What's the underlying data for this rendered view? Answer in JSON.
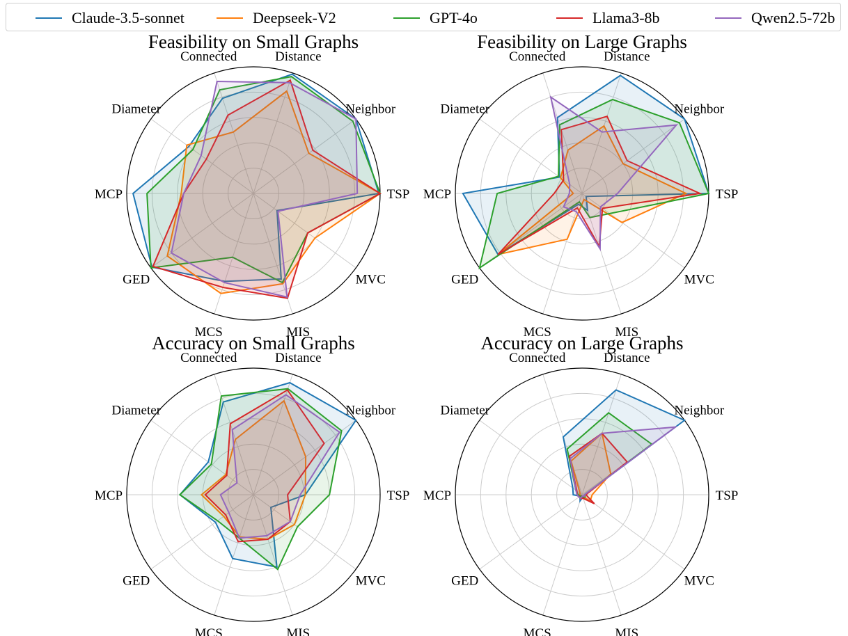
{
  "chart_data": {
    "type": "radar",
    "axes": [
      "Connected",
      "Distance",
      "Neighbor",
      "TSP",
      "MVC",
      "MIS",
      "MCS",
      "GED",
      "MCP",
      "Diameter"
    ],
    "rlim": [
      0,
      1
    ],
    "grid": true,
    "legend_position": "top",
    "legend": [
      {
        "name": "Claude-3.5-sonnet",
        "color": "#1f77b4"
      },
      {
        "name": "Deepseek-V2",
        "color": "#ff7f0e"
      },
      {
        "name": "GPT-4o",
        "color": "#2ca02c"
      },
      {
        "name": "Llama3-8b",
        "color": "#d62728"
      },
      {
        "name": "Qwen2.5-72b",
        "color": "#9467bd"
      }
    ],
    "panels": [
      {
        "title": "Feasibility on Small Graphs",
        "series": [
          {
            "name": "Claude-3.5-sonnet",
            "values": [
              0.79,
              0.99,
              1.0,
              0.99,
              0.23,
              0.71,
              0.73,
              0.99,
              0.95,
              0.63
            ]
          },
          {
            "name": "Deepseek-V2",
            "values": [
              0.51,
              0.85,
              0.54,
              1.0,
              0.6,
              0.75,
              0.83,
              0.84,
              0.57,
              0.65
            ]
          },
          {
            "name": "GPT-4o",
            "values": [
              0.86,
              0.97,
              0.97,
              1.0,
              0.53,
              0.74,
              0.53,
              1.0,
              0.84,
              0.59
            ]
          },
          {
            "name": "Llama3-8b",
            "values": [
              0.65,
              0.94,
              0.58,
              1.0,
              0.53,
              0.87,
              0.78,
              0.98,
              0.55,
              0.46
            ]
          },
          {
            "name": "Qwen2.5-72b",
            "values": [
              0.93,
              0.92,
              1.0,
              0.82,
              0.24,
              0.86,
              0.74,
              0.8,
              0.55,
              0.51
            ]
          }
        ]
      },
      {
        "title": "Feasibility on Large Graphs",
        "series": [
          {
            "name": "Claude-3.5-sonnet",
            "values": [
              0.63,
              0.98,
              1.0,
              1.0,
              0.04,
              0.14,
              0.09,
              0.82,
              0.94,
              0.22
            ]
          },
          {
            "name": "Deepseek-V2",
            "values": [
              0.36,
              0.56,
              0.4,
              0.82,
              0.39,
              0.05,
              0.38,
              0.82,
              0.07,
              0.21
            ]
          },
          {
            "name": "GPT-4o",
            "values": [
              0.57,
              0.78,
              0.95,
              1.0,
              0.27,
              0.2,
              0.07,
              1.0,
              0.67,
              0.23
            ]
          },
          {
            "name": "Llama3-8b",
            "values": [
              0.53,
              0.64,
              0.44,
              0.93,
              0.2,
              0.44,
              0.12,
              0.82,
              0.22,
              0.18
            ]
          },
          {
            "name": "Qwen2.5-72b",
            "values": [
              0.8,
              0.51,
              0.92,
              0.28,
              0.18,
              0.46,
              0.15,
              0.18,
              0.1,
              0.12
            ]
          }
        ]
      },
      {
        "title": "Accuracy on Small Graphs",
        "series": [
          {
            "name": "Claude-3.5-sonnet",
            "values": [
              0.77,
              0.93,
              1.0,
              0.41,
              0.17,
              0.6,
              0.53,
              0.37,
              0.58,
              0.44
            ]
          },
          {
            "name": "Deepseek-V2",
            "values": [
              0.46,
              0.78,
              0.51,
              0.41,
              0.4,
              0.37,
              0.35,
              0.29,
              0.41,
              0.27
            ]
          },
          {
            "name": "GPT-4o",
            "values": [
              0.82,
              0.88,
              0.86,
              0.6,
              0.43,
              0.62,
              0.36,
              0.35,
              0.58,
              0.41
            ]
          },
          {
            "name": "Llama3-8b",
            "values": [
              0.59,
              0.87,
              0.69,
              0.27,
              0.36,
              0.37,
              0.39,
              0.27,
              0.38,
              0.26
            ]
          },
          {
            "name": "Qwen2.5-72b",
            "values": [
              0.54,
              0.83,
              0.84,
              0.37,
              0.36,
              0.34,
              0.36,
              0.24,
              0.26,
              0.16
            ]
          }
        ]
      },
      {
        "title": "Accuracy on Large Graphs",
        "series": [
          {
            "name": "Claude-3.5-sonnet",
            "values": [
              0.48,
              0.87,
              1.0,
              0.02,
              0.02,
              0.02,
              0.05,
              0.02,
              0.07,
              0.09
            ]
          },
          {
            "name": "Deepseek-V2",
            "values": [
              0.28,
              0.51,
              0.28,
              0.08,
              0.08,
              0.02,
              0.03,
              0.01,
              0.02,
              0.02
            ]
          },
          {
            "name": "GPT-4o",
            "values": [
              0.38,
              0.68,
              0.68,
              0.02,
              0.03,
              0.02,
              0.01,
              0.02,
              0.03,
              0.06
            ]
          },
          {
            "name": "Llama3-8b",
            "values": [
              0.32,
              0.51,
              0.44,
              0.03,
              0.12,
              0.03,
              0.03,
              0.03,
              0.04,
              0.05
            ]
          },
          {
            "name": "Qwen2.5-72b",
            "values": [
              0.3,
              0.51,
              0.91,
              0.02,
              0.02,
              0.01,
              0.03,
              0.03,
              0.04,
              0.06
            ]
          }
        ]
      }
    ]
  }
}
